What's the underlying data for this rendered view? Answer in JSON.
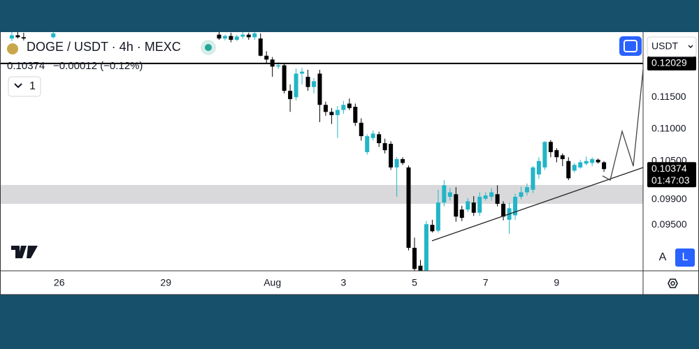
{
  "chart_data": {
    "type": "candlestick",
    "title": "DOGE / USDT · 4h · MEXC",
    "change": "−0.00012 (−0.12%)",
    "countdown": "01:47:03",
    "up_color": "#22b5c8",
    "down_color": "#000000",
    "x": [
      -8,
      -7,
      -6,
      -1,
      27,
      28,
      29,
      30,
      31,
      32,
      33,
      34,
      35,
      36,
      37,
      38,
      39,
      40,
      41,
      42,
      43,
      44,
      45,
      46,
      47,
      48,
      49,
      50,
      51,
      52,
      53,
      54,
      55,
      56,
      57,
      58,
      59,
      60,
      61,
      62,
      63,
      64,
      65,
      66,
      67,
      68,
      69,
      70,
      71,
      72,
      73,
      74,
      75,
      76,
      77,
      78,
      79,
      80,
      81,
      82,
      83,
      84,
      85,
      86,
      87,
      88,
      89,
      90,
      91,
      92
    ],
    "ohlc": [
      [
        0.1242,
        0.1253,
        0.1238,
        0.1247
      ],
      [
        0.1247,
        0.1253,
        0.1242,
        0.1244
      ],
      [
        0.1244,
        0.1251,
        0.1239,
        0.1242
      ],
      [
        0.1244,
        0.1254,
        0.1242,
        0.125
      ],
      [
        0.1248,
        0.1253,
        0.124,
        0.1242
      ],
      [
        0.1242,
        0.1248,
        0.1239,
        0.1246
      ],
      [
        0.1246,
        0.1251,
        0.1236,
        0.124
      ],
      [
        0.124,
        0.1248,
        0.1238,
        0.1245
      ],
      [
        0.1245,
        0.1252,
        0.1242,
        0.1248
      ],
      [
        0.1248,
        0.1251,
        0.124,
        0.1244
      ],
      [
        0.1244,
        0.1253,
        0.124,
        0.125
      ],
      [
        0.1242,
        0.125,
        0.1214,
        0.1215
      ],
      [
        0.1215,
        0.1222,
        0.1204,
        0.1209
      ],
      [
        0.1209,
        0.1213,
        0.1182,
        0.1198
      ],
      [
        0.1198,
        0.1205,
        0.1194,
        0.12
      ],
      [
        0.12,
        0.1204,
        0.1156,
        0.116
      ],
      [
        0.116,
        0.117,
        0.1127,
        0.1147
      ],
      [
        0.115,
        0.1195,
        0.1145,
        0.1187
      ],
      [
        0.1187,
        0.1196,
        0.117,
        0.119
      ],
      [
        0.1182,
        0.1193,
        0.116,
        0.1166
      ],
      [
        0.1166,
        0.118,
        0.1156,
        0.1175
      ],
      [
        0.1187,
        0.1193,
        0.1111,
        0.1138
      ],
      [
        0.1138,
        0.1143,
        0.1121,
        0.1127
      ],
      [
        0.1127,
        0.1133,
        0.1108,
        0.1122
      ],
      [
        0.1122,
        0.1136,
        0.1086,
        0.113
      ],
      [
        0.113,
        0.1144,
        0.1124,
        0.1138
      ],
      [
        0.114,
        0.1148,
        0.113,
        0.1133
      ],
      [
        0.1135,
        0.114,
        0.1105,
        0.111
      ],
      [
        0.111,
        0.1117,
        0.1082,
        0.1089
      ],
      [
        0.1064,
        0.1092,
        0.106,
        0.1089
      ],
      [
        0.1086,
        0.1098,
        0.1082,
        0.1093
      ],
      [
        0.1092,
        0.1096,
        0.1072,
        0.1078
      ],
      [
        0.1078,
        0.1085,
        0.1062,
        0.1067
      ],
      [
        0.1077,
        0.1081,
        0.1036,
        0.104
      ],
      [
        0.104,
        0.1056,
        0.0994,
        0.1053
      ],
      [
        0.1053,
        0.1056,
        0.1044,
        0.1047
      ],
      [
        0.104,
        0.1043,
        0.091,
        0.0914
      ],
      [
        0.0914,
        0.093,
        0.0878,
        0.0881
      ],
      [
        0.0886,
        0.0895,
        0.087,
        0.0876
      ],
      [
        0.0878,
        0.0956,
        0.0874,
        0.0951
      ],
      [
        0.095,
        0.0958,
        0.0938,
        0.094
      ],
      [
        0.0941,
        0.1005,
        0.0938,
        0.0985
      ],
      [
        0.0985,
        0.102,
        0.0979,
        0.1012
      ],
      [
        0.0994,
        0.1008,
        0.0988,
        0.1001
      ],
      [
        0.0998,
        0.1009,
        0.0955,
        0.0963
      ],
      [
        0.0974,
        0.098,
        0.0956,
        0.0961
      ],
      [
        0.0974,
        0.0992,
        0.097,
        0.0987
      ],
      [
        0.0985,
        0.0995,
        0.0964,
        0.0969
      ],
      [
        0.0969,
        0.1001,
        0.0964,
        0.0994
      ],
      [
        0.0991,
        0.1001,
        0.0988,
        0.0996
      ],
      [
        0.0994,
        0.1008,
        0.0988,
        0.1001
      ],
      [
        0.0998,
        0.1012,
        0.0979,
        0.0983
      ],
      [
        0.0983,
        0.0987,
        0.0957,
        0.0963
      ],
      [
        0.0958,
        0.0985,
        0.0936,
        0.0976
      ],
      [
        0.0965,
        0.0999,
        0.0958,
        0.0994
      ],
      [
        0.0994,
        0.101,
        0.099,
        0.1001
      ],
      [
        0.1001,
        0.1015,
        0.0996,
        0.1009
      ],
      [
        0.1005,
        0.1042,
        0.1,
        0.104
      ],
      [
        0.1029,
        0.1056,
        0.1022,
        0.105
      ],
      [
        0.104,
        0.1081,
        0.1036,
        0.108
      ],
      [
        0.108,
        0.1083,
        0.1056,
        0.1064
      ],
      [
        0.1067,
        0.107,
        0.1048,
        0.1056
      ],
      [
        0.1059,
        0.1062,
        0.1042,
        0.1053
      ],
      [
        0.105,
        0.1056,
        0.102,
        0.1023
      ],
      [
        0.1035,
        0.1047,
        0.1032,
        0.1044
      ],
      [
        0.104,
        0.1052,
        0.1038,
        0.1048
      ],
      [
        0.1046,
        0.1057,
        0.1043,
        0.105
      ],
      [
        0.1047,
        0.1056,
        0.1042,
        0.1053
      ],
      [
        0.1052,
        0.1054,
        0.1046,
        0.1048
      ],
      [
        0.1048,
        0.105,
        0.1033,
        0.10374
      ]
    ],
    "xlim": [
      -10,
      98.6
    ],
    "xticks": [
      {
        "value": 0,
        "label": "26"
      },
      {
        "value": 18,
        "label": "29"
      },
      {
        "value": 36,
        "label": "Aug"
      },
      {
        "value": 48,
        "label": "3"
      },
      {
        "value": 60,
        "label": "5"
      },
      {
        "value": 72,
        "label": "7"
      },
      {
        "value": 84,
        "label": "9"
      }
    ],
    "ylim": [
      0.0878,
      0.1252
    ],
    "yticks": [
      {
        "value": 0.095,
        "label": "0.09500"
      },
      {
        "value": 0.099,
        "label": "0.09900"
      },
      {
        "value": 0.105,
        "label": "0.10500"
      },
      {
        "value": 0.11,
        "label": "0.11000"
      },
      {
        "value": 0.115,
        "label": "0.11500"
      }
    ],
    "price_labels": [
      {
        "value": 0.12029,
        "label": "0.12029"
      },
      {
        "value": 0.10374,
        "label": "0.10374"
      }
    ]
  },
  "ui": {
    "interval": "1",
    "currency": "USDT",
    "auto": "A",
    "log": "L"
  }
}
